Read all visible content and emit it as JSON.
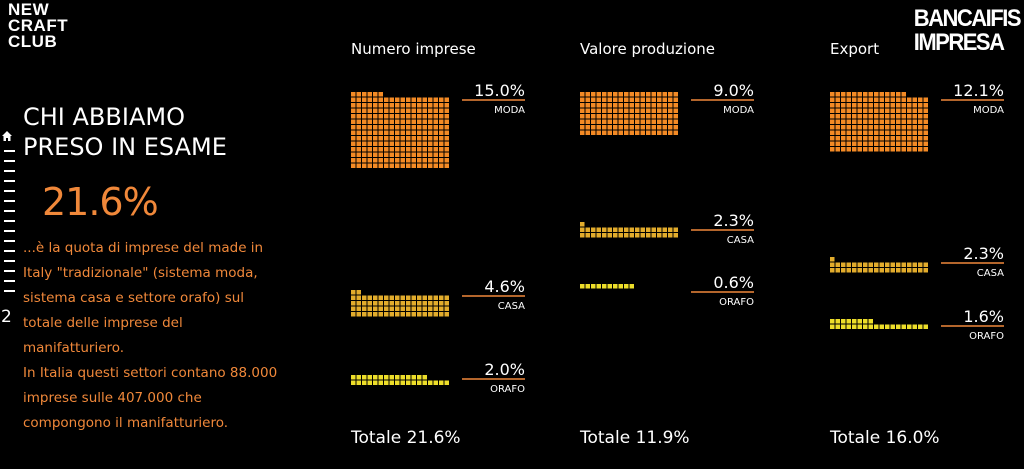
{
  "brand": {
    "left_logo": [
      "NEW",
      "CRAFT",
      "CLUB"
    ],
    "right_logo": [
      "BANCAIFIS",
      "IMPRESA"
    ]
  },
  "nav": {
    "page_number": "2"
  },
  "section": {
    "title_line1": "CHI ABBIAMO",
    "title_line2": "PRESO IN ESAME",
    "highlight": "21.6%",
    "description": [
      "...è la quota di imprese del made in Italy \"tradizionale\" (sistema moda, sistema casa e settore orafo) sul totale delle imprese del manifatturiero.",
      "In Italia questi settori contano 88.000 imprese sulle 407.000 che compongono il manifatturiero."
    ]
  },
  "colors": {
    "moda": "#f38a25",
    "casa": "#e2ac2c",
    "orafo": "#ecdd2a",
    "accent": "#f0883a",
    "line": "#f0883a"
  },
  "chart_data": {
    "type": "waffle-bar",
    "categories": [
      "MODA",
      "CASA",
      "ORAFO"
    ],
    "columns": [
      {
        "title": "Numero imprese",
        "values": [
          15.0,
          4.6,
          2.0
        ],
        "labels": [
          "15.0%",
          "4.6%",
          "2.0%"
        ],
        "total_label": "Totale 21.6%"
      },
      {
        "title": "Valore produzione",
        "values": [
          9.0,
          2.3,
          0.6
        ],
        "labels": [
          "9.0%",
          "2.3%",
          "0.6%"
        ],
        "total_label": "Totale 11.9%"
      },
      {
        "title": "Export",
        "values": [
          12.1,
          2.3,
          1.6
        ],
        "labels": [
          "12.1%",
          "2.3%",
          "1.6%"
        ],
        "total_label": "Totale 16.0%"
      }
    ]
  }
}
